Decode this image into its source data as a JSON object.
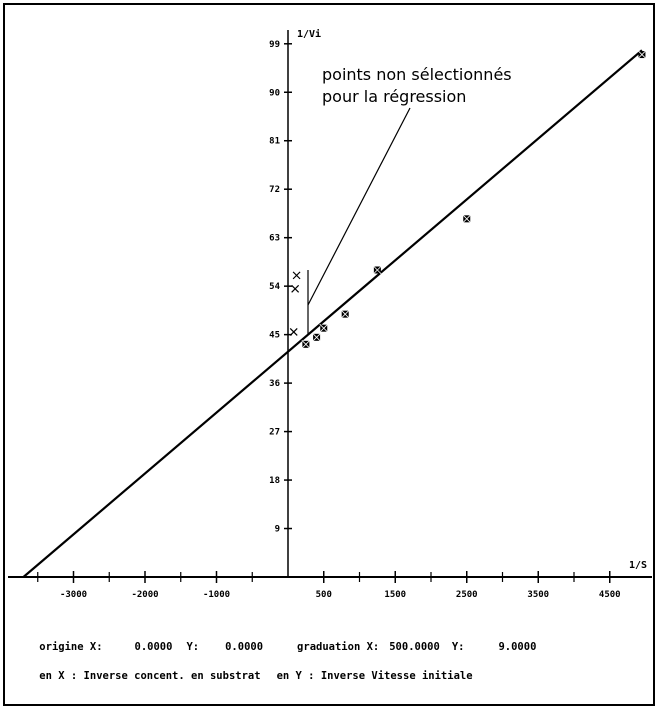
{
  "chart_data": {
    "type": "scatter",
    "xlabel": "1/S",
    "ylabel": "1/Vi",
    "xlim": [
      -4000,
      5000
    ],
    "ylim": [
      0,
      99
    ],
    "x_ticks": [
      -3000,
      -2000,
      -1000,
      500,
      1500,
      2500,
      3500,
      4500
    ],
    "y_ticks": [
      9,
      18,
      27,
      36,
      45,
      54,
      63,
      72,
      81,
      90,
      99
    ],
    "regression_line": {
      "x": [
        -3700,
        4950
      ],
      "y": [
        0,
        97.8
      ]
    },
    "series": [
      {
        "marker": "square-x",
        "x": [
          250,
          400,
          500,
          800,
          1250,
          2500,
          4950
        ],
        "y": [
          43.2,
          44.5,
          46.2,
          48.8,
          57.0,
          66.5,
          97.0
        ]
      },
      {
        "marker": "x",
        "x": [
          80,
          100,
          120
        ],
        "y": [
          45.5,
          53.5,
          56.0
        ]
      }
    ],
    "annotation": {
      "line1": "points non sélectionnés",
      "line2": "pour la régression"
    }
  },
  "info": {
    "origin_label": "origine X:",
    "origin_x": "0.0000",
    "origin_y_label": "Y:",
    "origin_y": "0.0000",
    "graduation_label": "graduation X:",
    "graduation_x": "500.0000",
    "graduation_y_label": "Y:",
    "graduation_y": "9.0000",
    "x_desc": "en X : Inverse concent. en substrat",
    "y_desc": "en Y : Inverse Vitesse initiale"
  }
}
